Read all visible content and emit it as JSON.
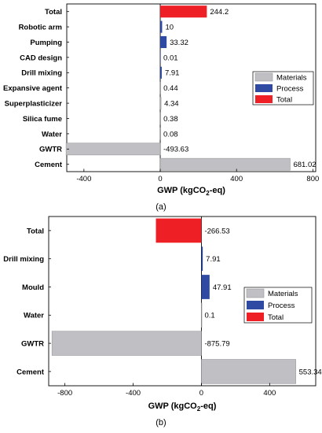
{
  "chart_data": [
    {
      "type": "bar",
      "orientation": "horizontal",
      "panel_label": "(a)",
      "categories": [
        "Total",
        "Robotic arm",
        "Pumping",
        "CAD design",
        "Drill mixing",
        "Expansive agent",
        "Superplasticizer",
        "Silica fume",
        "Water",
        "GWTR",
        "Cement"
      ],
      "values": [
        244.2,
        10,
        33.32,
        0.01,
        7.91,
        0.44,
        4.34,
        0.38,
        0.08,
        -493.63,
        681.02
      ],
      "value_labels": [
        "244.2",
        "10",
        "33.32",
        "0.01",
        "7.91",
        "0.44",
        "4.34",
        "0.38",
        "0.08",
        "-493.63",
        "681.02"
      ],
      "groups": [
        "Total",
        "Process",
        "Process",
        "Process",
        "Process",
        "Materials",
        "Materials",
        "Materials",
        "Materials",
        "Materials",
        "Materials"
      ],
      "xlabel_main": "GWP (kgCO",
      "xlabel_sub": "2",
      "xlabel_end": "-eq)",
      "xlim": [
        -490,
        815
      ],
      "xticks": [
        -400,
        0,
        400,
        800
      ],
      "xtick_labels": [
        "-400",
        "0",
        "400",
        "800"
      ],
      "legend": [
        "Materials",
        "Process",
        "Total"
      ],
      "legend_position": "right"
    },
    {
      "type": "bar",
      "orientation": "horizontal",
      "panel_label": "(b)",
      "categories": [
        "Total",
        "Drill mixing",
        "Mould",
        "Water",
        "GWTR",
        "Cement"
      ],
      "values": [
        -266.53,
        7.91,
        47.91,
        0.1,
        -875.79,
        553.34
      ],
      "value_labels": [
        "-266.53",
        "7.91",
        "47.91",
        "0.1",
        "-875.79",
        "553.34"
      ],
      "groups": [
        "Total",
        "Process",
        "Process",
        "Materials",
        "Materials",
        "Materials"
      ],
      "xlabel_main": "GWP (kgCO",
      "xlabel_sub": "2",
      "xlabel_end": "-eq)",
      "xlim": [
        -895,
        670
      ],
      "xticks": [
        -800,
        -400,
        0,
        400
      ],
      "xtick_labels": [
        "-800",
        "-400",
        "0",
        "400"
      ],
      "legend": [
        "Materials",
        "Process",
        "Total"
      ],
      "legend_position": "right"
    }
  ],
  "colors": {
    "Materials": "#c0bfc3",
    "Process": "#2e4aa3",
    "Total": "#ee2025"
  }
}
